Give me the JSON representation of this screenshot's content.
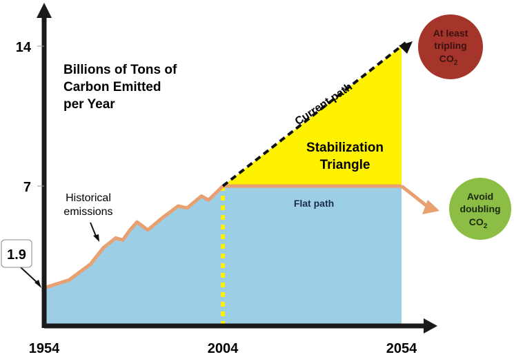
{
  "chart_data": {
    "type": "area",
    "title": "Billions of Tons of Carbon Emitted per Year",
    "title_lines": [
      "Billions of Tons of",
      "Carbon Emitted",
      "per Year"
    ],
    "x_ticks": [
      "1954",
      "2004",
      "2054"
    ],
    "y_ticks": [
      "7",
      "14"
    ],
    "xlim": [
      1954,
      2054
    ],
    "ylim": [
      0,
      14
    ],
    "start_label": "1.9",
    "historical": {
      "name": "Historical emissions",
      "label_lines": [
        "Historical",
        "emissions"
      ],
      "x": [
        1954,
        1961,
        1967,
        1970.5,
        1974,
        1976,
        1978,
        1980,
        1983,
        1987,
        1991.5,
        1994,
        1998,
        2000,
        2004
      ],
      "y": [
        1.9,
        2.3,
        3.1,
        3.9,
        4.4,
        4.3,
        4.8,
        5.2,
        4.8,
        5.4,
        6.0,
        5.9,
        6.5,
        6.3,
        7
      ]
    },
    "current_path": {
      "label": "Current path",
      "x": [
        2004,
        2054
      ],
      "y": [
        7,
        14
      ]
    },
    "flat_path": {
      "label": "Flat path",
      "x": [
        2004,
        2054
      ],
      "y": [
        7,
        7
      ]
    },
    "triangle_label": [
      "Stabilization",
      "Triangle"
    ],
    "outcomes": [
      {
        "lines": [
          "At least",
          "tripling",
          "CO"
        ],
        "sub": "2",
        "color": "#a5342a"
      },
      {
        "lines": [
          "Avoid",
          "doubling",
          "CO"
        ],
        "sub": "2",
        "color": "#8cbd45"
      }
    ],
    "colors": {
      "area": "#9ccfe6",
      "triangle": "#fff200",
      "line": "#e8a070",
      "axis": "#1a1a1a"
    }
  }
}
